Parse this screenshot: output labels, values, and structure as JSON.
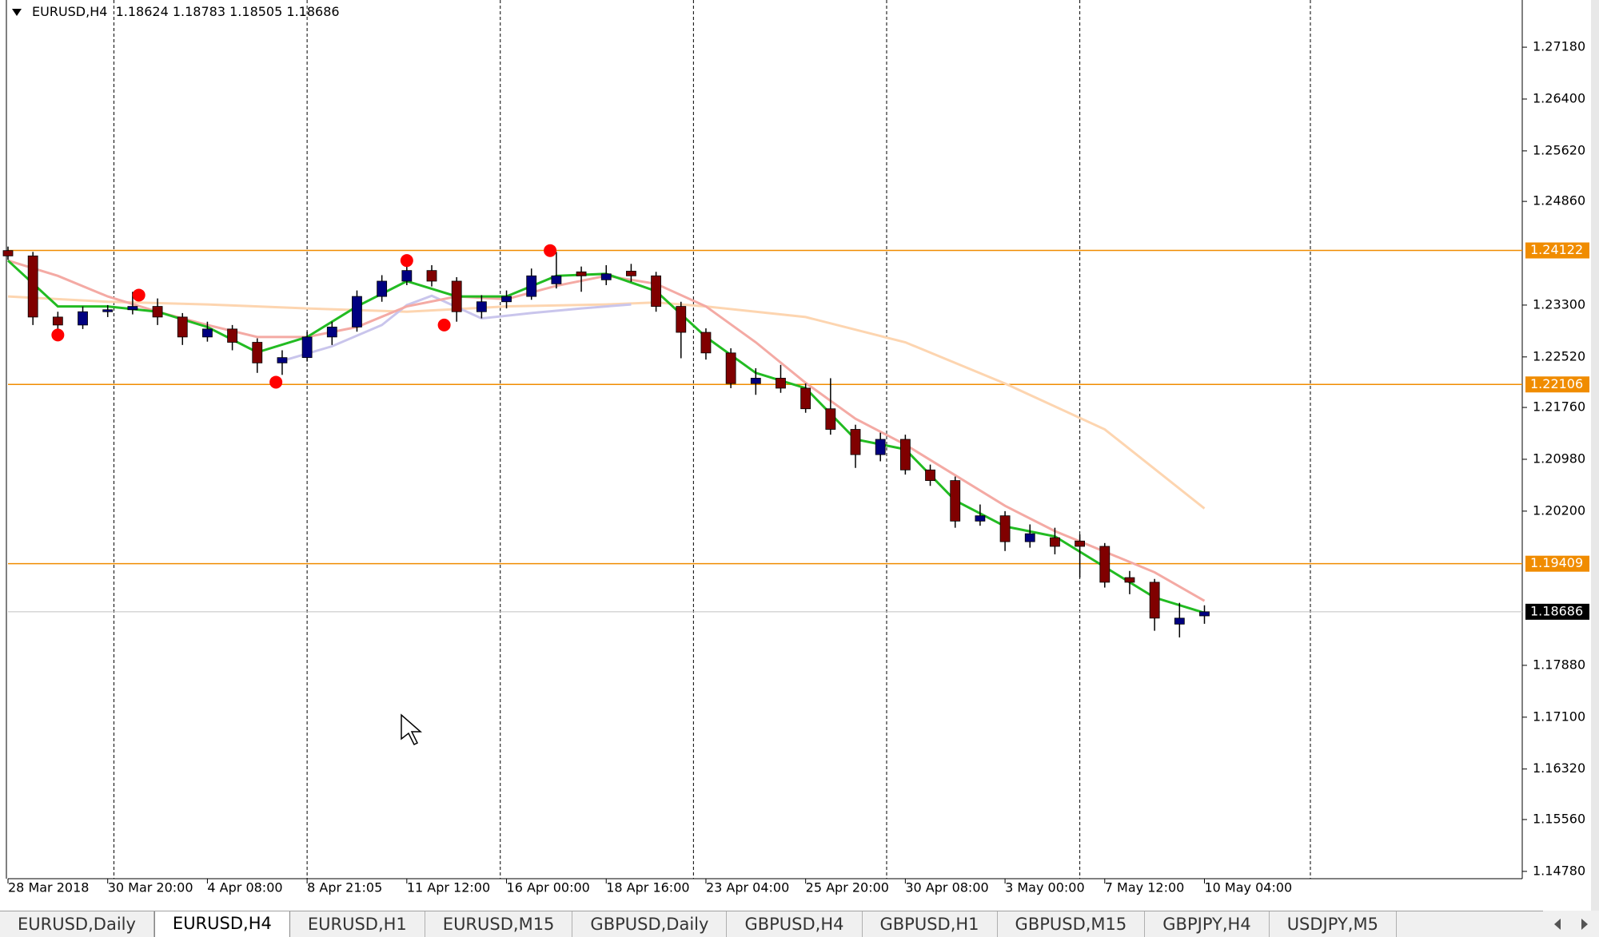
{
  "header": {
    "symbol": "EURUSD,H4"
  },
  "chart_data": {
    "type": "candlestick",
    "xlim": [
      0,
      243
    ],
    "ylim": [
      1.1467,
      1.2789
    ],
    "x": [
      0,
      4,
      8,
      12,
      16,
      20,
      24,
      28,
      32,
      36,
      40,
      44,
      48,
      52,
      56,
      60,
      64,
      68,
      72,
      76,
      80,
      84,
      88,
      92,
      96,
      100,
      104,
      108,
      112,
      116,
      120,
      124,
      128,
      132,
      136,
      140,
      144,
      148,
      152,
      156,
      160,
      164,
      168,
      172,
      176,
      180,
      184,
      188,
      192
    ],
    "open": [
      1.2412,
      1.2404,
      1.2312,
      1.23,
      1.232,
      1.2323,
      1.2328,
      1.2312,
      1.2282,
      1.2294,
      1.2274,
      1.2243,
      1.2251,
      1.2282,
      1.2297,
      1.2343,
      1.2366,
      1.2382,
      1.2366,
      1.232,
      1.2335,
      1.2343,
      1.2362,
      1.238,
      1.2368,
      1.2381,
      1.2374,
      1.2328,
      1.2289,
      1.2258,
      1.2212,
      1.222,
      1.2205,
      1.2174,
      1.2143,
      1.2105,
      1.2128,
      1.2082,
      1.2066,
      1.2005,
      1.2013,
      1.1974,
      1.198,
      1.1975,
      1.1967,
      1.192,
      1.1913,
      1.185,
      1.18624
    ],
    "high": [
      1.2418,
      1.241,
      1.232,
      1.2328,
      1.233,
      1.235,
      1.234,
      1.2318,
      1.2305,
      1.23,
      1.228,
      1.2262,
      1.229,
      1.2305,
      1.2352,
      1.2375,
      1.2395,
      1.239,
      1.2372,
      1.2345,
      1.2352,
      1.2385,
      1.241,
      1.2388,
      1.239,
      1.2392,
      1.238,
      1.2335,
      1.2295,
      1.2265,
      1.2235,
      1.224,
      1.2212,
      1.222,
      1.215,
      1.2138,
      1.2135,
      1.209,
      1.2072,
      1.203,
      1.202,
      1.2,
      1.1995,
      1.1985,
      1.1972,
      1.193,
      1.1918,
      1.1882,
      1.18783
    ],
    "low": [
      1.2398,
      1.23,
      1.2282,
      1.2294,
      1.2312,
      1.2316,
      1.23,
      1.227,
      1.2275,
      1.2262,
      1.2228,
      1.2225,
      1.2245,
      1.227,
      1.229,
      1.2335,
      1.236,
      1.2358,
      1.2305,
      1.231,
      1.2325,
      1.2338,
      1.2355,
      1.235,
      1.236,
      1.2365,
      1.232,
      1.225,
      1.2248,
      1.2205,
      1.2195,
      1.2198,
      1.2168,
      1.2135,
      1.2085,
      1.2095,
      1.2075,
      1.2058,
      1.1995,
      1.1998,
      1.196,
      1.1965,
      1.1955,
      1.192,
      1.1905,
      1.1895,
      1.184,
      1.183,
      1.18505
    ],
    "close": [
      1.2404,
      1.2312,
      1.23,
      1.232,
      1.2323,
      1.2328,
      1.2312,
      1.2282,
      1.2294,
      1.2274,
      1.2243,
      1.2251,
      1.2282,
      1.2297,
      1.2343,
      1.2366,
      1.2382,
      1.2366,
      1.232,
      1.2335,
      1.2343,
      1.2374,
      1.2374,
      1.2374,
      1.2377,
      1.2374,
      1.2328,
      1.2289,
      1.2258,
      1.2212,
      1.222,
      1.2205,
      1.2174,
      1.2143,
      1.2105,
      1.2128,
      1.2082,
      1.2066,
      1.2005,
      1.2013,
      1.1974,
      1.1986,
      1.1967,
      1.1967,
      1.1913,
      1.1913,
      1.1859,
      1.1859,
      1.18686
    ],
    "up_color": "#000080",
    "down_color": "#800000",
    "wick_color": "#000000",
    "xticks": [
      {
        "value": 0,
        "label": "28 Mar 2018"
      },
      {
        "value": 16,
        "label": "30 Mar 20:00"
      },
      {
        "value": 32,
        "label": "4 Apr 08:00"
      },
      {
        "value": 48,
        "label": "8 Apr 21:05"
      },
      {
        "value": 64,
        "label": "11 Apr 12:00"
      },
      {
        "value": 80,
        "label": "16 Apr 00:00"
      },
      {
        "value": 96,
        "label": "18 Apr 16:00"
      },
      {
        "value": 112,
        "label": "23 Apr 04:00"
      },
      {
        "value": 128,
        "label": "25 Apr 20:00"
      },
      {
        "value": 144,
        "label": "30 Apr 08:00"
      },
      {
        "value": 160,
        "label": "3 May 00:00"
      },
      {
        "value": 176,
        "label": "7 May 12:00"
      },
      {
        "value": 192,
        "label": "10 May 04:00"
      }
    ],
    "yticks": [
      {
        "value": 1.2718,
        "label": "1.27180"
      },
      {
        "value": 1.264,
        "label": "1.26400"
      },
      {
        "value": 1.2562,
        "label": "1.25620"
      },
      {
        "value": 1.2486,
        "label": "1.24860"
      },
      {
        "value": 1.233,
        "label": "1.23300"
      },
      {
        "value": 1.2252,
        "label": "1.22520"
      },
      {
        "value": 1.2176,
        "label": "1.21760"
      },
      {
        "value": 1.2098,
        "label": "1.20980"
      },
      {
        "value": 1.202,
        "label": "1.20200"
      },
      {
        "value": 1.1788,
        "label": "1.17880"
      },
      {
        "value": 1.171,
        "label": "1.17100"
      },
      {
        "value": 1.1632,
        "label": "1.16320"
      },
      {
        "value": 1.1556,
        "label": "1.15560"
      },
      {
        "value": 1.1478,
        "label": "1.14780"
      }
    ],
    "period_separators": [
      17,
      48,
      79,
      110,
      141,
      172,
      209
    ],
    "indicators": [
      {
        "color": "#fdd5b0",
        "x": [
          0,
          16,
          32,
          48,
          64,
          80,
          96,
          104,
          112,
          128,
          144,
          160,
          176,
          192
        ],
        "values": [
          1.2343,
          1.2335,
          1.2331,
          1.2325,
          1.232,
          1.2328,
          1.2331,
          1.2334,
          1.2328,
          1.2312,
          1.2274,
          1.2212,
          1.2143,
          1.2024
        ]
      },
      {
        "color": "#c9c5ec",
        "x": [
          44,
          52,
          60,
          64,
          68,
          76,
          84,
          92,
          100
        ],
        "values": [
          1.2246,
          1.2268,
          1.23,
          1.233,
          1.2344,
          1.231,
          1.2318,
          1.2325,
          1.2331
        ]
      },
      {
        "color": "#f4aaa4",
        "x": [
          0,
          8,
          16,
          24,
          32,
          40,
          48,
          56,
          64,
          72,
          80,
          88,
          96,
          104,
          112,
          120,
          128,
          136,
          144,
          152,
          160,
          168,
          176,
          184,
          192
        ],
        "values": [
          1.2397,
          1.2374,
          1.2343,
          1.232,
          1.23,
          1.2282,
          1.2282,
          1.2297,
          1.2328,
          1.2343,
          1.2339,
          1.2359,
          1.2374,
          1.2362,
          1.2328,
          1.2274,
          1.2213,
          1.2159,
          1.212,
          1.2074,
          1.2028,
          1.199,
          1.1959,
          1.1928,
          1.1885
        ]
      },
      {
        "color": "#22bb22",
        "x": [
          0,
          8,
          16,
          24,
          32,
          40,
          48,
          56,
          64,
          72,
          80,
          88,
          96,
          104,
          112,
          120,
          128,
          136,
          144,
          152,
          160,
          168,
          176,
          184,
          192
        ],
        "values": [
          1.2397,
          1.2328,
          1.2328,
          1.232,
          1.2297,
          1.2259,
          1.2282,
          1.2328,
          1.2366,
          1.2343,
          1.2343,
          1.2374,
          1.2377,
          1.2351,
          1.2282,
          1.2228,
          1.2205,
          1.2128,
          1.2113,
          1.2036,
          1.1997,
          1.1982,
          1.1936,
          1.189,
          1.1867
        ]
      }
    ],
    "fractals": {
      "color": "#ff0000",
      "x": [
        8,
        21,
        43,
        64,
        70,
        87
      ],
      "values": [
        1.2285,
        1.2345,
        1.2214,
        1.2397,
        1.23,
        1.2412
      ]
    },
    "levels": [
      {
        "value": 1.24122,
        "color": "#f08c00"
      },
      {
        "value": 1.22106,
        "color": "#f08c00"
      },
      {
        "value": 1.19409,
        "color": "#f08c00"
      }
    ],
    "bid_line_color": "#c0c0c0"
  },
  "tabs": [
    "EURUSD,Daily",
    "EURUSD,H4",
    "EURUSD,H1",
    "EURUSD,M15",
    "GBPUSD,Daily",
    "GBPUSD,H4",
    "GBPUSD,H1",
    "GBPUSD,M15",
    "GBPJPY,H4",
    "USDJPY,M5"
  ],
  "active_tab": 1
}
